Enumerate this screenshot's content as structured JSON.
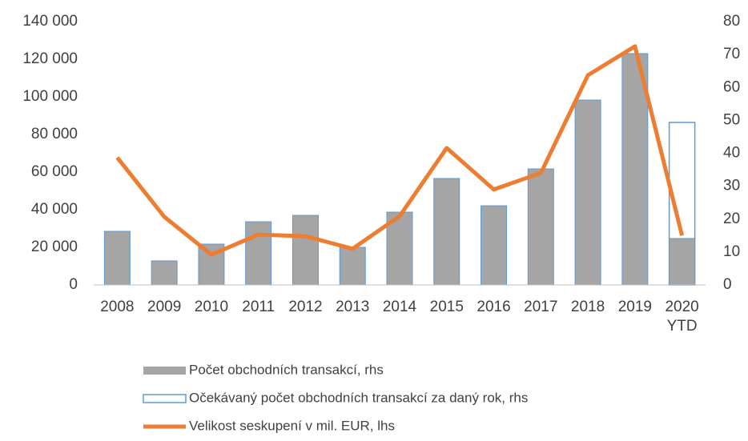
{
  "chart_data": {
    "type": "bar",
    "categories": [
      "2008",
      "2009",
      "2010",
      "2011",
      "2012",
      "2013",
      "2014",
      "2015",
      "2016",
      "2017",
      "2018",
      "2019",
      "2020\nYTD"
    ],
    "series": [
      {
        "name": "Počet obchodních transakcí, rhs",
        "type": "bar",
        "color": "#a5a5a5",
        "stroke": "#5b9bd5",
        "values": [
          28500,
          12800,
          21700,
          33600,
          37000,
          20000,
          38700,
          56600,
          42100,
          61700,
          98300,
          123000,
          24700
        ]
      },
      {
        "name": "Očekávaný počet obchodních transakcí za daný rok, rhs",
        "type": "outline",
        "color": "#5b9bd5",
        "values": [
          null,
          null,
          null,
          null,
          null,
          null,
          null,
          null,
          null,
          null,
          null,
          null,
          86400
        ]
      },
      {
        "name": "Velikost seskupení v mil. EUR, lhs",
        "type": "line",
        "color": "#ed7d31",
        "axis": "y2",
        "values": [
          38.7,
          20.7,
          9.2,
          15.3,
          14.8,
          11,
          20.9,
          41.6,
          29,
          34,
          63.7,
          72.5,
          15
        ]
      }
    ],
    "ylim": [
      0,
      140000
    ],
    "yticks": [
      0,
      {
        "value": 20000,
        "label": "20 000"
      },
      {
        "value": 40000,
        "label": "40 000"
      },
      {
        "value": 60000,
        "label": "60 000"
      },
      {
        "value": 80000,
        "label": "80 000"
      },
      {
        "value": 100000,
        "label": "100 000"
      },
      {
        "value": 120000,
        "label": "120 000"
      },
      {
        "value": 140000,
        "label": "140 000"
      }
    ],
    "y2lim": [
      0,
      80
    ],
    "y2ticks": [
      0,
      10,
      20,
      30,
      40,
      50,
      60,
      70,
      80
    ],
    "grid": false
  }
}
